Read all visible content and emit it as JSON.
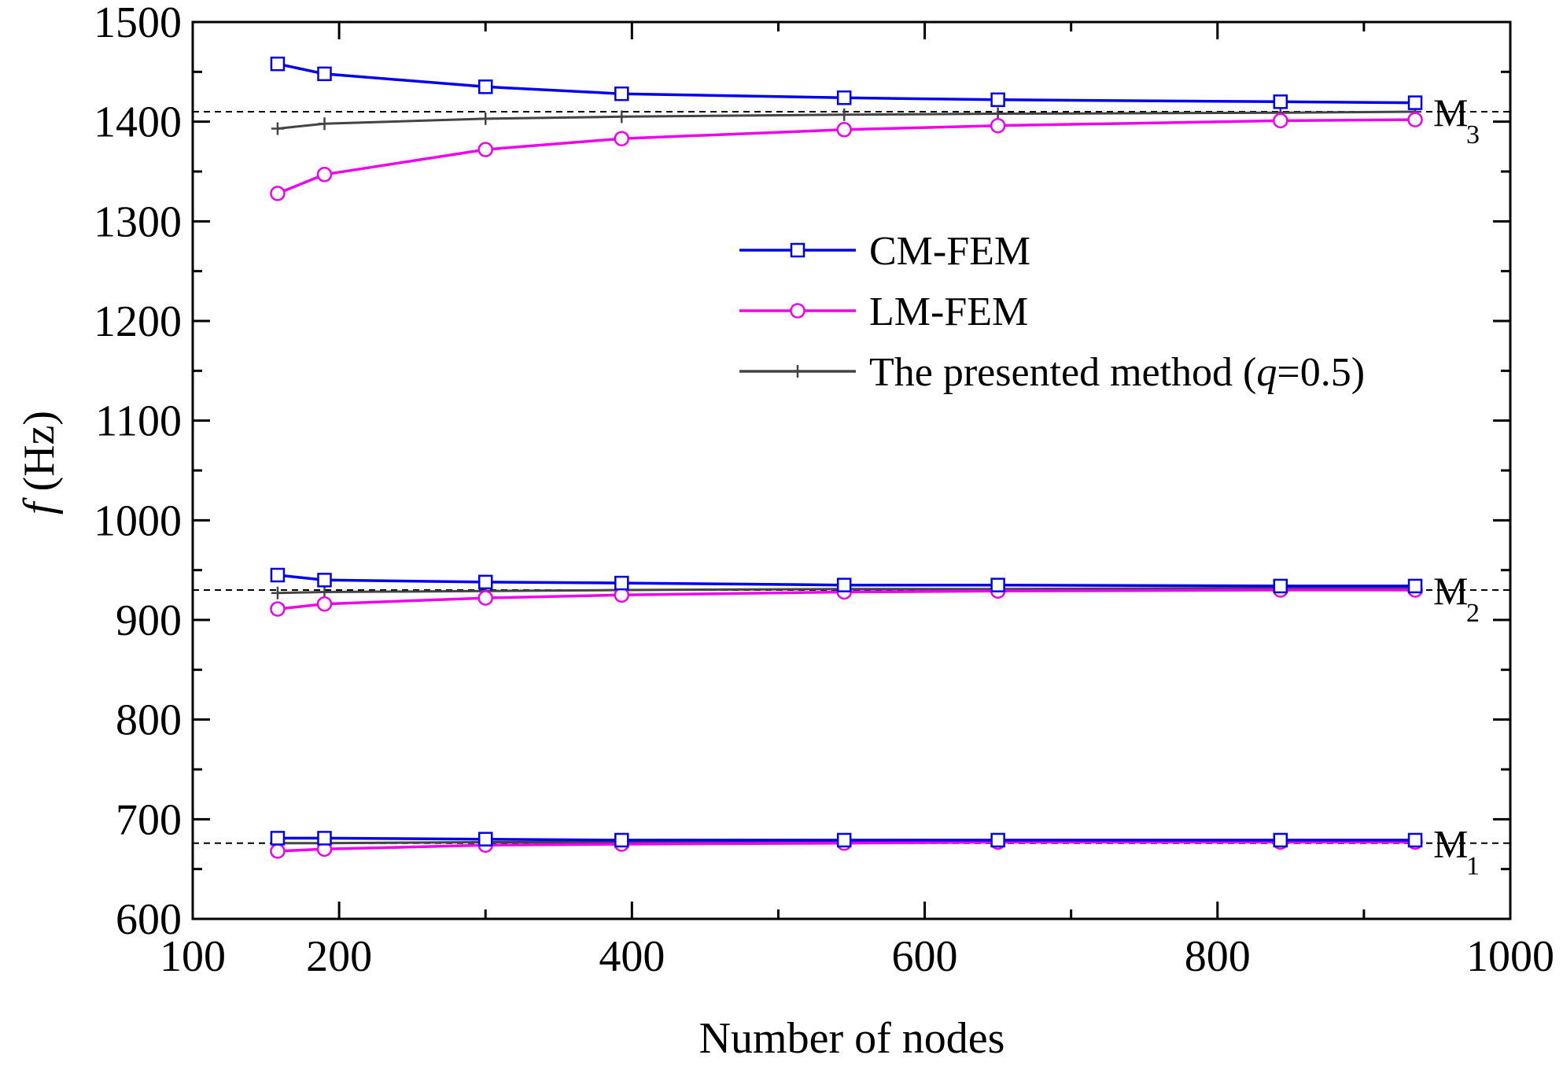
{
  "chart_data": {
    "type": "line",
    "xlabel": "Number of nodes",
    "ylabel_italic": "f",
    "ylabel_rest": " (Hz)",
    "xlim": [
      100,
      1000
    ],
    "ylim": [
      600,
      1500
    ],
    "x_ticks": [
      100,
      200,
      400,
      600,
      800,
      1000
    ],
    "x_tick_labels": [
      "100",
      "200",
      "400",
      "600",
      "800",
      "1000"
    ],
    "x_minor_ticks": [
      300,
      500,
      700,
      900
    ],
    "y_ticks": [
      600,
      700,
      800,
      900,
      1000,
      1100,
      1200,
      1300,
      1400,
      1500
    ],
    "y_tick_labels": [
      "600",
      "700",
      "800",
      "900",
      "1000",
      "1100",
      "1200",
      "1300",
      "1400",
      "1500"
    ],
    "y_minor_ticks": [
      650,
      750,
      850,
      950,
      1050,
      1150,
      1250,
      1350,
      1450
    ],
    "grid": false,
    "legend_position": "upper-right",
    "x": [
      158,
      190,
      300,
      393,
      545,
      650,
      843,
      935
    ],
    "groups": [
      {
        "mode": "M1",
        "series": [
          {
            "key": "cm",
            "values": [
              681,
              681,
              680,
              679,
              679,
              679,
              679,
              679
            ]
          },
          {
            "key": "lm",
            "values": [
              668,
              670,
              674,
              675,
              676,
              677,
              677,
              677
            ]
          },
          {
            "key": "pm",
            "values": [
              676,
              676,
              677,
              677,
              678,
              678,
              678,
              678
            ]
          }
        ]
      },
      {
        "mode": "M2",
        "series": [
          {
            "key": "cm",
            "values": [
              945,
              940,
              938,
              937,
              935,
              935,
              934,
              934
            ]
          },
          {
            "key": "lm",
            "values": [
              911,
              916,
              922,
              925,
              928,
              929,
              930,
              930
            ]
          },
          {
            "key": "pm",
            "values": [
              927,
              928,
              929,
              930,
              931,
              931,
              932,
              932
            ]
          }
        ]
      },
      {
        "mode": "M3",
        "series": [
          {
            "key": "cm",
            "values": [
              1458,
              1448,
              1435,
              1428,
              1424,
              1422,
              1420,
              1419
            ]
          },
          {
            "key": "lm",
            "values": [
              1328,
              1347,
              1372,
              1383,
              1392,
              1396,
              1401,
              1402
            ]
          },
          {
            "key": "pm",
            "values": [
              1393,
              1398,
              1403,
              1405,
              1407,
              1408,
              1409,
              1410
            ]
          }
        ]
      }
    ],
    "series_styles": {
      "cm": {
        "name": "CM-FEM",
        "color": "#0000ee",
        "marker": "square"
      },
      "lm": {
        "name": "LM-FEM",
        "color": "#ee00ee",
        "marker": "circle"
      },
      "pm": {
        "name": "The presented method (q=0.5)",
        "color": "#444444",
        "marker": "plus"
      }
    },
    "legend": [
      {
        "key": "cm",
        "label": "CM-FEM"
      },
      {
        "key": "lm",
        "label": "LM-FEM"
      },
      {
        "key": "pm",
        "label_prefix": "The presented method (",
        "label_italic": "q",
        "label_suffix": "=0.5)"
      }
    ],
    "reference_lines": [
      {
        "y": 676,
        "label": "M",
        "sub": "1"
      },
      {
        "y": 930,
        "label": "M",
        "sub": "2"
      },
      {
        "y": 1410,
        "label": "M",
        "sub": "3"
      }
    ]
  }
}
